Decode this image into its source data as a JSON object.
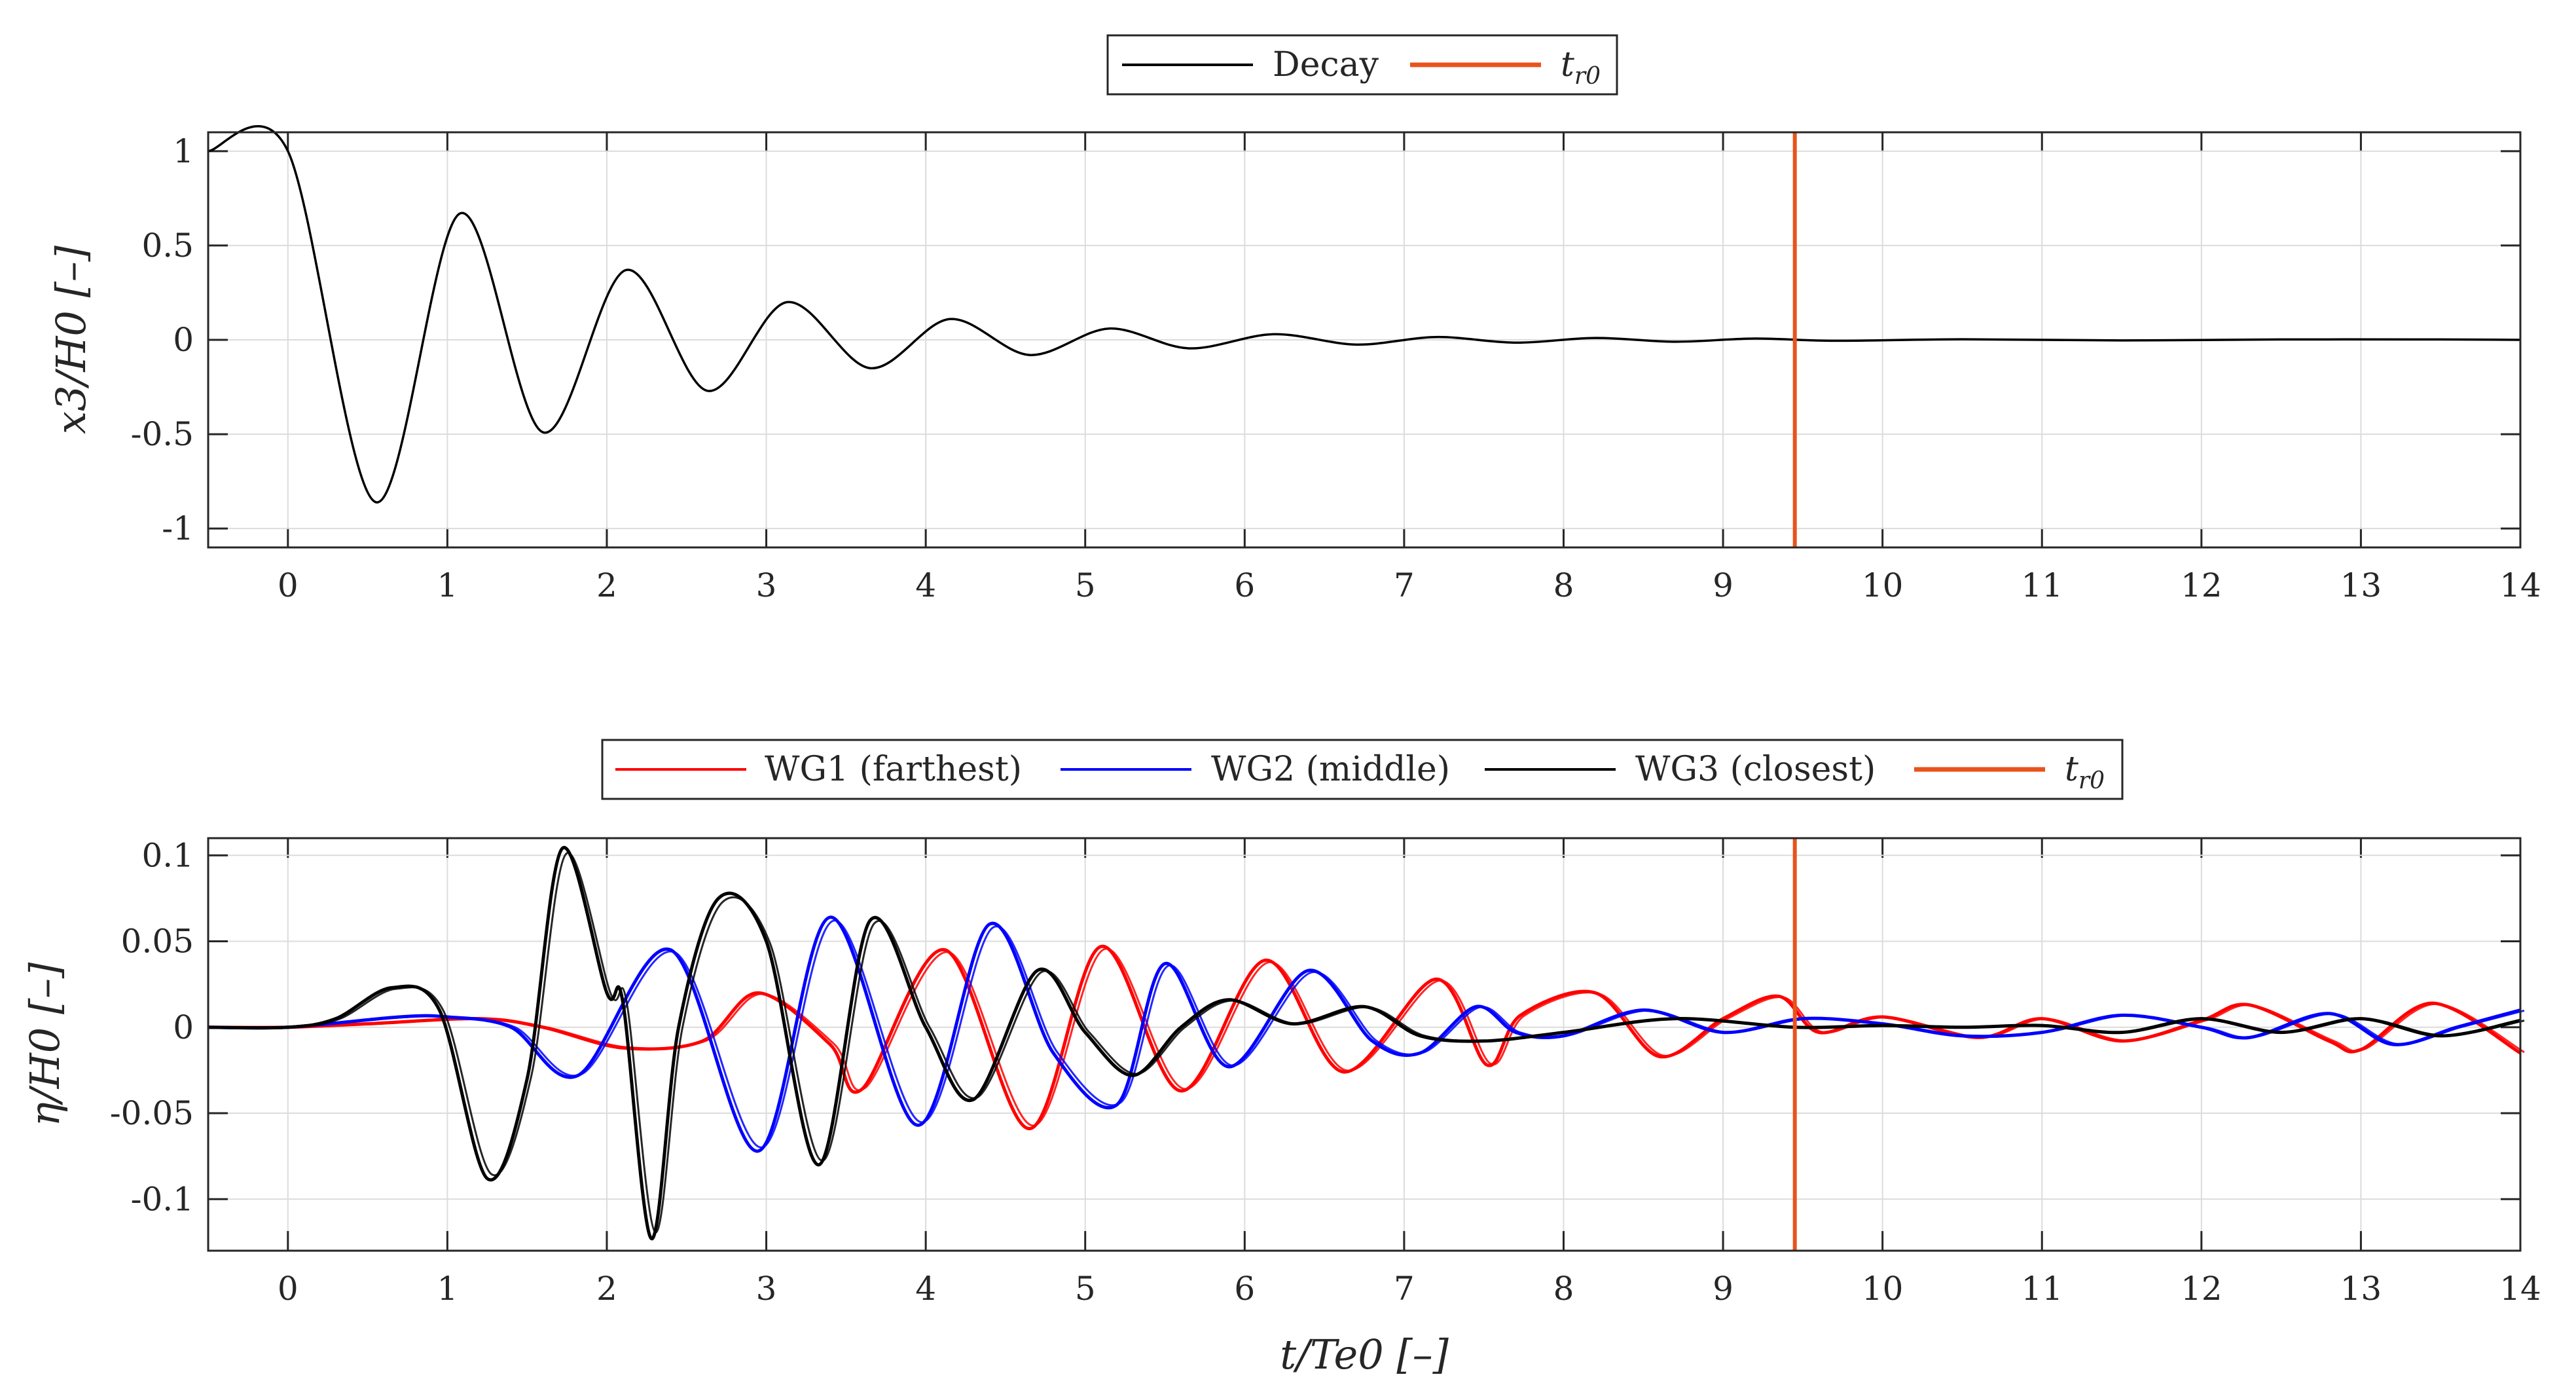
{
  "chart_data": [
    {
      "type": "line",
      "panel": "top",
      "title": "",
      "xlabel": "",
      "ylabel": "x3/H0 [–]",
      "xlim": [
        -0.5,
        14
      ],
      "ylim": [
        -1.1,
        1.1
      ],
      "xticks": [
        "0",
        "1",
        "2",
        "3",
        "4",
        "5",
        "6",
        "7",
        "8",
        "9",
        "10",
        "11",
        "12",
        "13",
        "14"
      ],
      "yticks": [
        "1",
        "0.5",
        "0",
        "-0.5",
        "-1"
      ],
      "ytick_values": [
        1,
        0.5,
        0,
        -0.5,
        -1
      ],
      "grid": true,
      "legend": {
        "placement": "top-center",
        "entries": [
          "Decay",
          "t_r0"
        ]
      },
      "series": [
        {
          "name": "Decay",
          "color": "#000000",
          "points_x": [
            -0.5,
            0,
            0.55,
            1.08,
            1.6,
            2.12,
            2.63,
            3.13,
            3.65,
            4.15,
            4.65,
            5.15,
            5.65,
            6.18,
            6.7,
            7.2,
            7.7,
            8.2,
            8.7,
            9.2,
            9.7,
            10.5,
            11.5,
            12.5,
            13.5,
            14
          ],
          "points_y": [
            1,
            1,
            -0.86,
            0.67,
            -0.49,
            0.37,
            -0.27,
            0.2,
            -0.15,
            0.11,
            -0.08,
            0.06,
            -0.045,
            0.03,
            -0.025,
            0.015,
            -0.015,
            0.01,
            -0.01,
            0.007,
            -0.005,
            0.003,
            -0.003,
            0.002,
            0.002,
            0
          ]
        },
        {
          "name": "t_r0",
          "color": "#e8531c",
          "type": "vline",
          "x": 9.45
        }
      ]
    },
    {
      "type": "line",
      "panel": "bottom",
      "title": "",
      "xlabel": "t/Te0 [–]",
      "ylabel": "η/H0 [–]",
      "xlim": [
        -0.5,
        14
      ],
      "ylim": [
        -0.13,
        0.11
      ],
      "xticks": [
        "0",
        "1",
        "2",
        "3",
        "4",
        "5",
        "6",
        "7",
        "8",
        "9",
        "10",
        "11",
        "12",
        "13",
        "14"
      ],
      "yticks": [
        "0.1",
        "0.05",
        "0",
        "-0.05",
        "-0.1"
      ],
      "ytick_values": [
        0.1,
        0.05,
        0,
        -0.05,
        -0.1
      ],
      "grid": true,
      "legend": {
        "placement": "top-center",
        "entries": [
          "WG1 (farthest)",
          "WG2 (middle)",
          "WG3 (closest)",
          "t_r0"
        ]
      },
      "series": [
        {
          "name": "WG1 (farthest)",
          "color": "#ff0000",
          "points_x": [
            -0.5,
            0,
            0.5,
            1.2,
            1.6,
            2.1,
            2.6,
            2.95,
            3.4,
            3.6,
            4.12,
            4.65,
            5.1,
            5.6,
            6.13,
            6.62,
            7.2,
            7.52,
            7.73,
            8.2,
            8.6,
            9.0,
            9.35,
            9.6,
            10.0,
            10.6,
            11.0,
            11.5,
            12.0,
            12.3,
            12.8,
            13.0,
            13.45,
            14.0
          ],
          "points_y": [
            0,
            0,
            0.002,
            0.005,
            0.0,
            -0.012,
            -0.008,
            0.02,
            -0.01,
            -0.036,
            0.045,
            -0.059,
            0.047,
            -0.037,
            0.039,
            -0.026,
            0.028,
            -0.022,
            0.007,
            0.02,
            -0.017,
            0.005,
            0.018,
            -0.003,
            0.006,
            -0.006,
            0.005,
            -0.008,
            0.004,
            0.013,
            -0.008,
            -0.013,
            0.014,
            -0.015
          ]
        },
        {
          "name": "WG2 (middle)",
          "color": "#0000ff",
          "points_x": [
            -0.5,
            0,
            0.7,
            1.0,
            1.4,
            1.82,
            2.4,
            2.95,
            3.4,
            3.95,
            4.4,
            4.8,
            5.2,
            5.5,
            5.9,
            6.4,
            6.8,
            7.1,
            7.45,
            7.7,
            8.0,
            8.5,
            9.0,
            9.5,
            10.0,
            10.5,
            11.0,
            11.5,
            12.0,
            12.3,
            12.8,
            13.2,
            13.6,
            14.0
          ],
          "points_y": [
            0,
            0,
            0.006,
            0.006,
            0.0,
            -0.028,
            0.045,
            -0.072,
            0.064,
            -0.057,
            0.06,
            -0.015,
            -0.045,
            0.037,
            -0.023,
            0.033,
            -0.008,
            -0.015,
            0.012,
            -0.003,
            -0.005,
            0.01,
            -0.003,
            0.005,
            0.002,
            -0.005,
            -0.003,
            0.007,
            0.0,
            -0.006,
            0.008,
            -0.01,
            0.0,
            0.01
          ]
        },
        {
          "name": "WG3 (closest)",
          "color": "#000000",
          "points_x": [
            -0.5,
            0,
            0.3,
            0.65,
            0.95,
            1.25,
            1.5,
            1.72,
            2.0,
            2.1,
            2.28,
            2.45,
            2.7,
            3.0,
            3.33,
            3.65,
            4.0,
            4.3,
            4.7,
            5.0,
            5.3,
            5.6,
            5.9,
            6.3,
            6.75,
            7.1,
            7.5,
            8.0,
            8.7,
            9.45,
            10.0,
            10.5,
            11.0,
            11.5,
            12.0,
            12.5,
            13.0,
            13.5,
            14.0
          ],
          "points_y": [
            0,
            0,
            0.005,
            0.023,
            0.01,
            -0.088,
            -0.03,
            0.104,
            0.02,
            0.015,
            -0.123,
            0.0,
            0.075,
            0.05,
            -0.08,
            0.062,
            0.0,
            -0.042,
            0.033,
            -0.003,
            -0.028,
            0.0,
            0.016,
            0.002,
            0.012,
            -0.005,
            -0.008,
            -0.003,
            0.005,
            0.0,
            0.001,
            0.0,
            0.001,
            -0.003,
            0.005,
            -0.003,
            0.005,
            -0.005,
            0.004
          ]
        },
        {
          "name": "t_r0",
          "color": "#e8531c",
          "type": "vline",
          "x": 9.45
        }
      ]
    }
  ],
  "legend_top": {
    "decay": "Decay",
    "tr0_main": "t",
    "tr0_sub": "r0"
  },
  "legend_bottom": {
    "wg1": "WG1 (farthest)",
    "wg2": "WG2 (middle)",
    "wg3": "WG3 (closest)",
    "tr0_main": "t",
    "tr0_sub": "r0"
  },
  "axis_labels": {
    "top_ylabel": "x3/H0 [–]",
    "bottom_ylabel": "η/H0 [–]",
    "bottom_xlabel": "t/Te0 [–]"
  }
}
